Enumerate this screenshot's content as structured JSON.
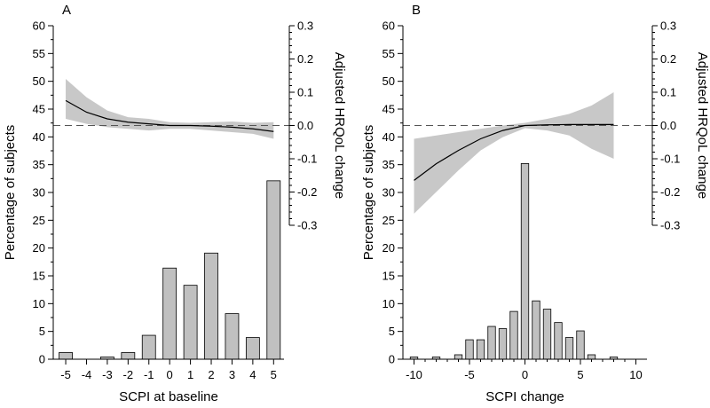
{
  "colors": {
    "bar_fill": "#c0c0c0",
    "band_fill": "#c8c8c8",
    "axis": "#000000",
    "reference_line": "#555555"
  },
  "chart_data": [
    {
      "panel_label": "A",
      "type": "bar",
      "xlabel": "SCPI at baseline",
      "ylabel_left": "Percentage of subjects",
      "ylabel_right": "Adjusted HRQoL change",
      "x_ticks": [
        -5,
        -4,
        -3,
        -2,
        -1,
        0,
        1,
        2,
        3,
        4,
        5
      ],
      "x_range": [
        -5.6,
        5.5
      ],
      "left_ylim": [
        0,
        60
      ],
      "left_yticks": [
        0,
        5,
        10,
        15,
        20,
        25,
        30,
        35,
        40,
        45,
        50,
        55,
        60
      ],
      "right_ylim": [
        -0.3,
        0.3
      ],
      "right_yticks": [
        -0.3,
        -0.2,
        -0.1,
        0.0,
        0.1,
        0.2,
        0.3
      ],
      "right_axis_bottom_pct": 22.5,
      "bars": {
        "x": [
          -5,
          -4,
          -3,
          -2,
          -1,
          0,
          1,
          2,
          3,
          4,
          5
        ],
        "values": [
          1.2,
          0,
          0.4,
          1.2,
          4.3,
          16.4,
          13.3,
          19.1,
          8.2,
          3.9,
          32.1
        ]
      },
      "curve": {
        "x": [
          -5,
          -4,
          -3,
          -2,
          -1,
          0,
          1,
          2,
          3,
          4,
          5
        ],
        "estimate": [
          0.075,
          0.04,
          0.02,
          0.01,
          0.005,
          0.0,
          0.0,
          -0.002,
          -0.005,
          -0.01,
          -0.018
        ],
        "ci_lower": [
          0.02,
          0.005,
          -0.005,
          -0.01,
          -0.015,
          -0.01,
          -0.01,
          -0.015,
          -0.02,
          -0.025,
          -0.04
        ],
        "ci_upper": [
          0.14,
          0.085,
          0.045,
          0.025,
          0.02,
          0.01,
          0.008,
          0.01,
          0.012,
          0.008,
          0.01
        ]
      },
      "reference_y": 0.0,
      "grid": false,
      "legend": "none"
    },
    {
      "panel_label": "B",
      "type": "bar",
      "xlabel": "SCPI change",
      "ylabel_left": "Percentage of subjects",
      "ylabel_right": "Adjusted HRQoL change",
      "x_ticks": [
        -10,
        -5,
        0,
        5,
        10
      ],
      "x_range": [
        -11,
        11
      ],
      "left_ylim": [
        0,
        60
      ],
      "left_yticks": [
        0,
        5,
        10,
        15,
        20,
        25,
        30,
        35,
        40,
        45,
        50,
        55,
        60
      ],
      "right_ylim": [
        -0.3,
        0.3
      ],
      "right_yticks": [
        -0.3,
        -0.2,
        -0.1,
        0.0,
        0.1,
        0.2,
        0.3
      ],
      "right_axis_bottom_pct": 22.5,
      "bars": {
        "x": [
          -10,
          -9,
          -8,
          -7,
          -6,
          -5,
          -4,
          -3,
          -2,
          -1,
          0,
          1,
          2,
          3,
          4,
          5,
          6,
          7,
          8
        ],
        "values": [
          0.4,
          0,
          0.4,
          0,
          0.8,
          3.5,
          3.5,
          5.9,
          5.5,
          8.6,
          35.2,
          10.5,
          9.0,
          6.6,
          3.9,
          5.1,
          0.8,
          0,
          0.4
        ]
      },
      "curve": {
        "x": [
          -10,
          -8,
          -6,
          -4,
          -2,
          0,
          2,
          4,
          6,
          8
        ],
        "estimate": [
          -0.165,
          -0.115,
          -0.075,
          -0.04,
          -0.015,
          0.0,
          0.002,
          0.003,
          0.003,
          0.003
        ],
        "ci_lower": [
          -0.265,
          -0.2,
          -0.135,
          -0.075,
          -0.035,
          -0.008,
          -0.015,
          -0.03,
          -0.07,
          -0.1
        ],
        "ci_upper": [
          -0.04,
          -0.03,
          -0.02,
          -0.01,
          0.0,
          0.008,
          0.02,
          0.035,
          0.06,
          0.1
        ]
      },
      "reference_y": 0.0,
      "grid": false,
      "legend": "none"
    }
  ]
}
